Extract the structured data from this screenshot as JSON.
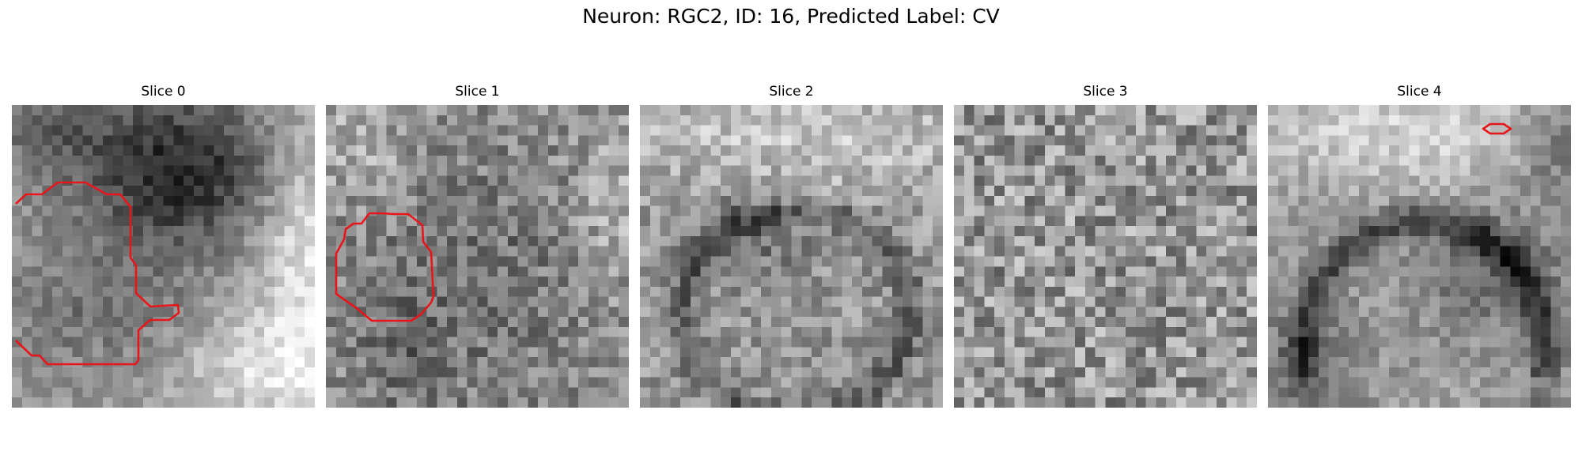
{
  "figure": {
    "title": "Neuron: RGC2, ID: 16, Predicted Label: CV"
  },
  "panels": [
    {
      "title": "Slice 0"
    },
    {
      "title": "Slice 1"
    },
    {
      "title": "Slice 2"
    },
    {
      "title": "Slice 3"
    },
    {
      "title": "Slice 4"
    }
  ],
  "colors": {
    "contour": "#e8151b",
    "colormap": "grayscale"
  }
}
